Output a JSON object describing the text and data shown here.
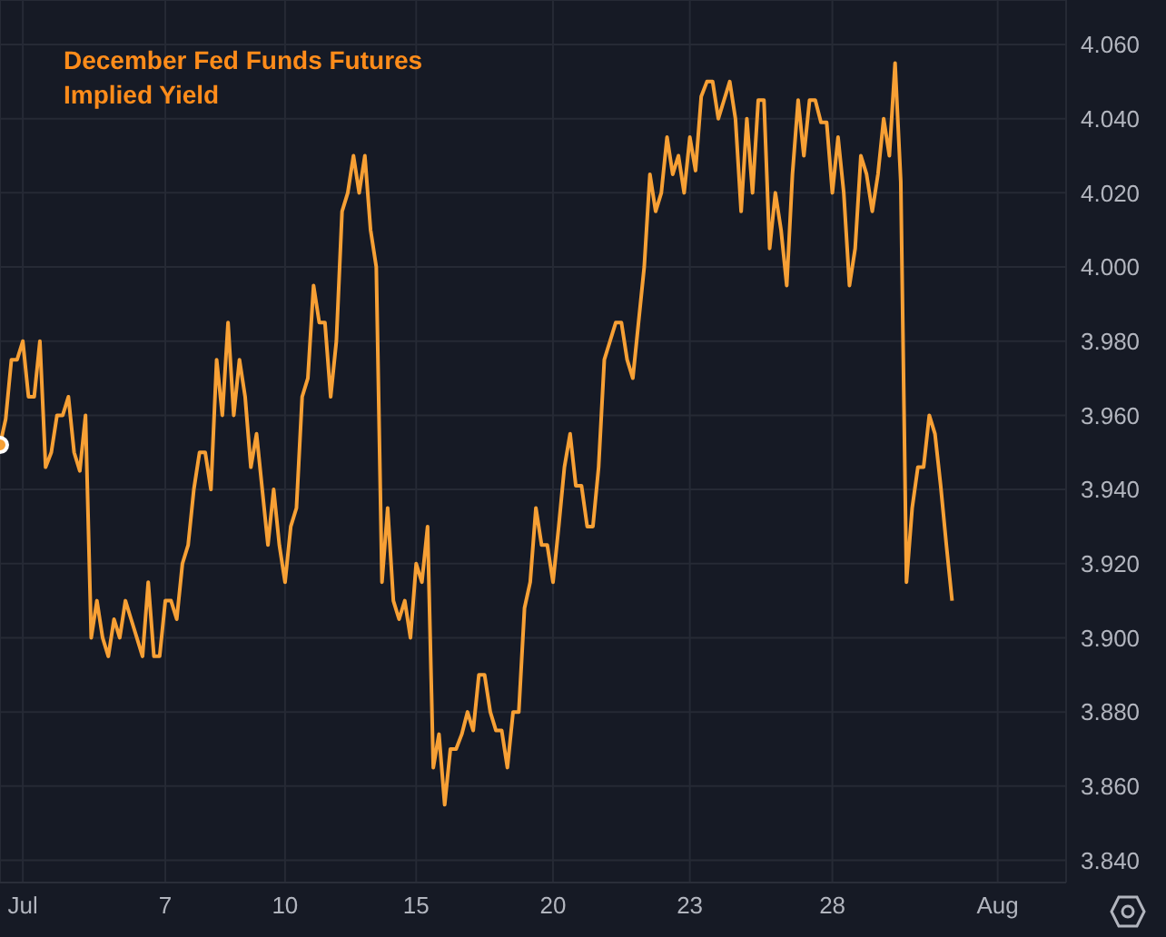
{
  "chart_data": {
    "type": "line",
    "title": "December Fed Funds Futures\nImplied Yield",
    "categories": [
      null,
      null,
      null,
      null,
      "Jul",
      null,
      null,
      null,
      null,
      null,
      null,
      null,
      null,
      null,
      null,
      null,
      null,
      null,
      null,
      null,
      null,
      null,
      null,
      null,
      null,
      null,
      null,
      null,
      null,
      "7",
      null,
      null,
      null,
      null,
      null,
      null,
      null,
      null,
      null,
      null,
      null,
      null,
      null,
      null,
      null,
      null,
      null,
      null,
      null,
      null,
      "10",
      null,
      null,
      null,
      null,
      null,
      null,
      null,
      null,
      null,
      null,
      null,
      null,
      null,
      null,
      null,
      null,
      null,
      null,
      null,
      null,
      null,
      null,
      "15",
      null,
      null,
      null,
      null,
      null,
      null,
      null,
      null,
      null,
      null,
      null,
      null,
      null,
      null,
      null,
      null,
      null,
      null,
      null,
      null,
      null,
      null,
      null,
      "20",
      null,
      null,
      null,
      null,
      null,
      null,
      null,
      null,
      null,
      null,
      null,
      null,
      null,
      null,
      null,
      null,
      null,
      null,
      null,
      null,
      null,
      null,
      null,
      "23",
      null,
      null,
      null,
      null,
      null,
      null,
      null,
      null,
      null,
      null,
      null,
      null,
      null,
      null,
      null,
      null,
      null,
      null,
      null,
      null,
      null,
      null,
      null,
      null,
      "28",
      null,
      null,
      null,
      null,
      null,
      null,
      null,
      null,
      null,
      null,
      null,
      null,
      null,
      null,
      null,
      null,
      null,
      null,
      null,
      null,
      null,
      null,
      null,
      null,
      null,
      null,
      null,
      null,
      "Aug",
      null,
      null,
      null,
      null,
      null,
      null,
      null,
      null,
      null,
      null,
      null,
      null
    ],
    "ylim": [
      3.834,
      4.072
    ],
    "yticks": [
      {
        "value": 3.84,
        "label": "3.840"
      },
      {
        "value": 3.86,
        "label": "3.860"
      },
      {
        "value": 3.88,
        "label": "3.880"
      },
      {
        "value": 3.9,
        "label": "3.900"
      },
      {
        "value": 3.92,
        "label": "3.920"
      },
      {
        "value": 3.94,
        "label": "3.940"
      },
      {
        "value": 3.96,
        "label": "3.960"
      },
      {
        "value": 3.98,
        "label": "3.980"
      },
      {
        "value": 4.0,
        "label": "4.000"
      },
      {
        "value": 4.02,
        "label": "4.020"
      },
      {
        "value": 4.04,
        "label": "4.040"
      },
      {
        "value": 4.06,
        "label": "4.060"
      }
    ],
    "grid": true,
    "series": [
      {
        "color": "#f7a035",
        "values": [
          3.952,
          3.959,
          3.975,
          3.975,
          3.98,
          3.965,
          3.965,
          3.98,
          3.946,
          3.95,
          3.96,
          3.96,
          3.965,
          3.95,
          3.945,
          3.96,
          3.9,
          3.91,
          3.9,
          3.895,
          3.905,
          3.9,
          3.91,
          3.905,
          3.9,
          3.895,
          3.915,
          3.895,
          3.895,
          3.91,
          3.91,
          3.905,
          3.92,
          3.925,
          3.94,
          3.95,
          3.95,
          3.94,
          3.975,
          3.96,
          3.985,
          3.96,
          3.975,
          3.965,
          3.946,
          3.955,
          3.94,
          3.925,
          3.94,
          3.925,
          3.915,
          3.93,
          3.935,
          3.965,
          3.97,
          3.995,
          3.985,
          3.985,
          3.965,
          3.98,
          4.015,
          4.02,
          4.03,
          4.02,
          4.03,
          4.01,
          4.0,
          3.915,
          3.935,
          3.91,
          3.905,
          3.91,
          3.9,
          3.92,
          3.915,
          3.93,
          3.865,
          3.874,
          3.855,
          3.87,
          3.87,
          3.874,
          3.88,
          3.875,
          3.89,
          3.89,
          3.88,
          3.875,
          3.875,
          3.865,
          3.88,
          3.88,
          3.908,
          3.915,
          3.935,
          3.925,
          3.925,
          3.915,
          3.93,
          3.946,
          3.955,
          3.941,
          3.941,
          3.93,
          3.93,
          3.946,
          3.975,
          3.98,
          3.985,
          3.985,
          3.975,
          3.97,
          3.985,
          4.0,
          4.025,
          4.015,
          4.02,
          4.035,
          4.025,
          4.03,
          4.02,
          4.035,
          4.026,
          4.046,
          4.05,
          4.05,
          4.04,
          4.045,
          4.05,
          4.04,
          4.015,
          4.04,
          4.02,
          4.045,
          4.045,
          4.005,
          4.02,
          4.01,
          3.995,
          4.025,
          4.045,
          4.03,
          4.045,
          4.045,
          4.039,
          4.039,
          4.02,
          4.035,
          4.02,
          3.995,
          4.005,
          4.03,
          4.025,
          4.015,
          4.025,
          4.04,
          4.03,
          4.055,
          4.023,
          3.915,
          3.935,
          3.946,
          3.946,
          3.96,
          3.955,
          3.941,
          3.925,
          3.91,
          null,
          null,
          null,
          null,
          null,
          null,
          null,
          null,
          null,
          null,
          null,
          null,
          null,
          null,
          null,
          null,
          null,
          null,
          null,
          null
        ]
      }
    ]
  }
}
